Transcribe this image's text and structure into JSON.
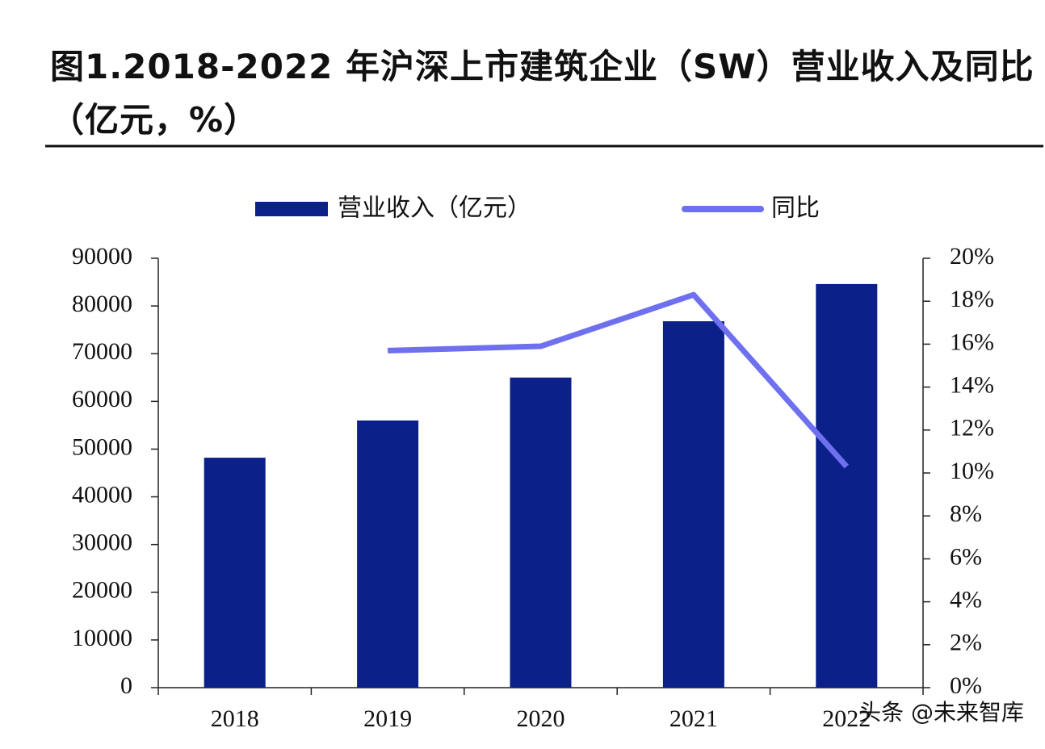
{
  "chart_data": {
    "type": "bar_line",
    "title": "图1.2018-2022 年沪深上市建筑企业（SW）营业收入及同比（亿元，%）",
    "categories": [
      "2018",
      "2019",
      "2020",
      "2021",
      "2022"
    ],
    "series": [
      {
        "name": "营业收入（亿元）",
        "type": "bar",
        "color": "#0c2089",
        "values": [
          48200,
          56000,
          65000,
          76800,
          84600
        ]
      },
      {
        "name": "同比",
        "type": "line",
        "axis": "y2",
        "color": "#6f70f0",
        "values": [
          null,
          15.7,
          15.9,
          18.3,
          10.3
        ]
      }
    ],
    "ylim": [
      0,
      90000
    ],
    "yticks": [
      0,
      10000,
      20000,
      30000,
      40000,
      50000,
      60000,
      70000,
      80000,
      90000
    ],
    "y2lim": [
      0,
      20
    ],
    "y2ticks": [
      {
        "value": 0,
        "label": "0%"
      },
      {
        "value": 2,
        "label": "2%"
      },
      {
        "value": 4,
        "label": "4%"
      },
      {
        "value": 6,
        "label": "6%"
      },
      {
        "value": 8,
        "label": "8%"
      },
      {
        "value": 10,
        "label": "10%"
      },
      {
        "value": 12,
        "label": "12%"
      },
      {
        "value": 14,
        "label": "14%"
      },
      {
        "value": 16,
        "label": "16%"
      },
      {
        "value": 18,
        "label": "18%"
      },
      {
        "value": 20,
        "label": "20%"
      }
    ],
    "legend": "top",
    "watermark": "头条 @未来智库"
  }
}
